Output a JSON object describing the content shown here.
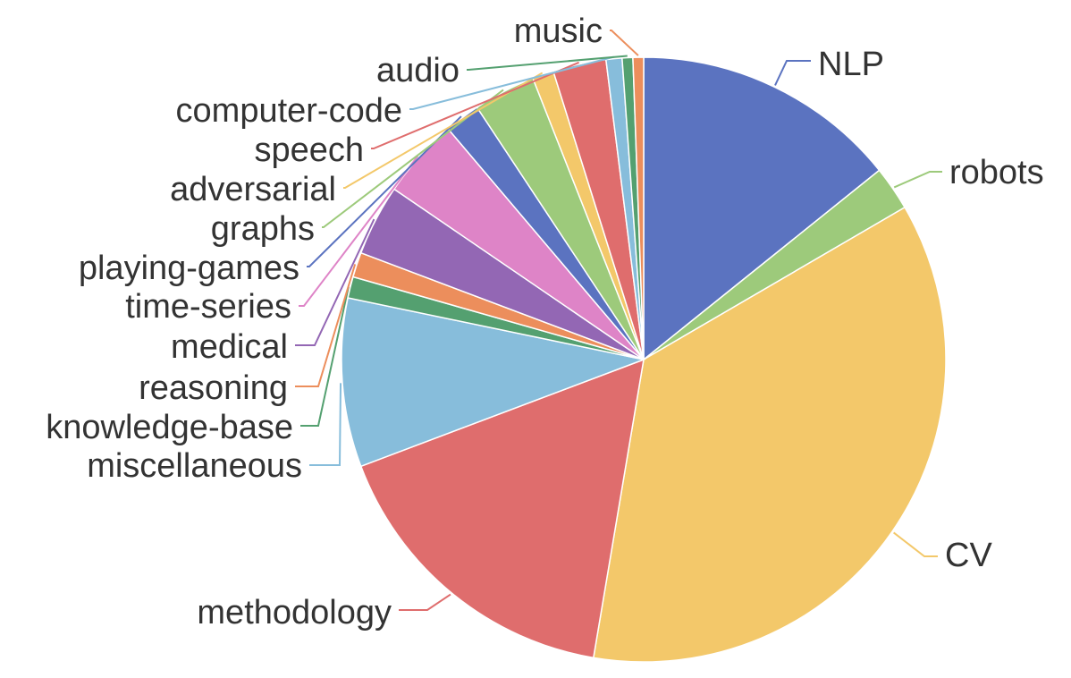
{
  "chart_data": {
    "type": "pie",
    "title": "",
    "start_angle_deg": 0,
    "direction": "clockwise",
    "slices": [
      {
        "label": "NLP",
        "value": 15.0,
        "color": "#5b73c0"
      },
      {
        "label": "robots",
        "value": 2.5,
        "color": "#9dca7b"
      },
      {
        "label": "CV",
        "value": 38.0,
        "color": "#f3c86a"
      },
      {
        "label": "methodology",
        "value": 17.5,
        "color": "#df6d6d"
      },
      {
        "label": "miscellaneous",
        "value": 9.5,
        "color": "#87bddb"
      },
      {
        "label": "knowledge-base",
        "value": 1.2,
        "color": "#54a070"
      },
      {
        "label": "reasoning",
        "value": 1.4,
        "color": "#ec8e5c"
      },
      {
        "label": "medical",
        "value": 4.0,
        "color": "#9367b4"
      },
      {
        "label": "time-series",
        "value": 4.5,
        "color": "#de84c7"
      },
      {
        "label": "playing-games",
        "value": 2.0,
        "color": "#5b73c0"
      },
      {
        "label": "graphs",
        "value": 3.5,
        "color": "#9dca7b"
      },
      {
        "label": "adversarial",
        "value": 1.2,
        "color": "#f3c86a"
      },
      {
        "label": "speech",
        "value": 3.0,
        "color": "#df6d6d"
      },
      {
        "label": "computer-code",
        "value": 0.9,
        "color": "#87bddb"
      },
      {
        "label": "audio",
        "value": 0.6,
        "color": "#54a070"
      },
      {
        "label": "music",
        "value": 0.6,
        "color": "#ec8e5c"
      }
    ]
  }
}
